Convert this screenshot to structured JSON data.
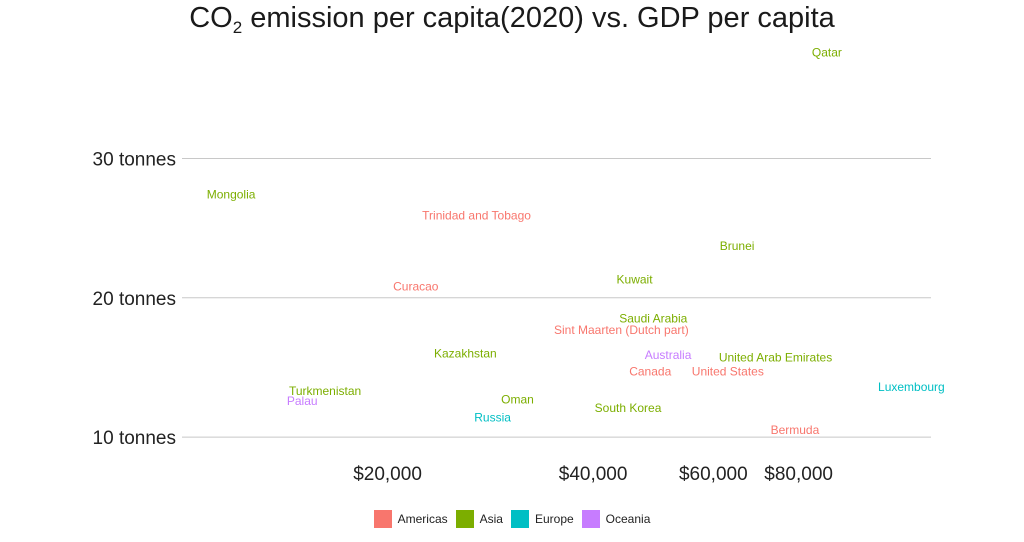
{
  "chart_data": {
    "type": "scatter",
    "title": {
      "main": "CO",
      "subscript": "2",
      "rest": " emission per capita(2020) vs. GDP per capita"
    },
    "xlabel": "",
    "ylabel": "",
    "x_scale": "log",
    "xlim": [
      10000,
      125000
    ],
    "ylim": [
      8,
      38.5
    ],
    "y_ticks": [
      {
        "value": 10,
        "label": "10 tonnes"
      },
      {
        "value": 20,
        "label": "20 tonnes"
      },
      {
        "value": 30,
        "label": "30 tonnes"
      }
    ],
    "x_ticks": [
      {
        "value": 20000,
        "label": "$20,000"
      },
      {
        "value": 40000,
        "label": "$40,000"
      },
      {
        "value": 60000,
        "label": "$60,000"
      },
      {
        "value": 80000,
        "label": "$80,000"
      }
    ],
    "grid": true,
    "legend_position": "bottom",
    "legend": [
      {
        "name": "Americas",
        "color": "#F8766D"
      },
      {
        "name": "Asia",
        "color": "#7CAE00"
      },
      {
        "name": "Europe",
        "color": "#00BFC4"
      },
      {
        "name": "Oceania",
        "color": "#C77CFF"
      }
    ],
    "points": [
      {
        "label": "Qatar",
        "region": "Asia",
        "x": 88000,
        "y": 37.6
      },
      {
        "label": "Mongolia",
        "region": "Asia",
        "x": 11800,
        "y": 27.4
      },
      {
        "label": "Trinidad and Tobago",
        "region": "Americas",
        "x": 27000,
        "y": 25.9
      },
      {
        "label": "Brunei",
        "region": "Asia",
        "x": 65000,
        "y": 23.7
      },
      {
        "label": "Kuwait",
        "region": "Asia",
        "x": 46000,
        "y": 21.3
      },
      {
        "label": "Curacao",
        "region": "Americas",
        "x": 22000,
        "y": 20.8
      },
      {
        "label": "Saudi Arabia",
        "region": "Asia",
        "x": 49000,
        "y": 18.5
      },
      {
        "label": "Sint Maarten (Dutch part)",
        "region": "Americas",
        "x": 44000,
        "y": 17.7
      },
      {
        "label": "Kazakhstan",
        "region": "Asia",
        "x": 26000,
        "y": 16.0
      },
      {
        "label": "Australia",
        "region": "Oceania",
        "x": 51500,
        "y": 15.9
      },
      {
        "label": "United Arab Emirates",
        "region": "Asia",
        "x": 74000,
        "y": 15.7
      },
      {
        "label": "Canada",
        "region": "Americas",
        "x": 48500,
        "y": 14.7
      },
      {
        "label": "United States",
        "region": "Americas",
        "x": 63000,
        "y": 14.7
      },
      {
        "label": "Luxembourg",
        "region": "Europe",
        "x": 117000,
        "y": 13.6
      },
      {
        "label": "Turkmenistan",
        "region": "Asia",
        "x": 16200,
        "y": 13.3
      },
      {
        "label": "Palau",
        "region": "Oceania",
        "x": 15000,
        "y": 12.6
      },
      {
        "label": "Oman",
        "region": "Asia",
        "x": 31000,
        "y": 12.7
      },
      {
        "label": "South Korea",
        "region": "Asia",
        "x": 45000,
        "y": 12.1
      },
      {
        "label": "Russia",
        "region": "Europe",
        "x": 28500,
        "y": 11.4
      },
      {
        "label": "Bermuda",
        "region": "Americas",
        "x": 79000,
        "y": 10.5
      }
    ]
  }
}
